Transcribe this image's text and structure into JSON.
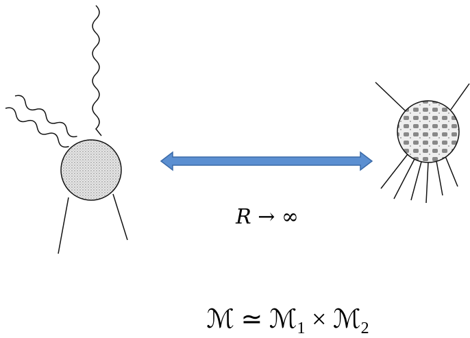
{
  "label": "R → ∞",
  "formula": [
    "ℳ ≃ ℳ",
    "1",
    " × ℳ",
    "2"
  ]
}
